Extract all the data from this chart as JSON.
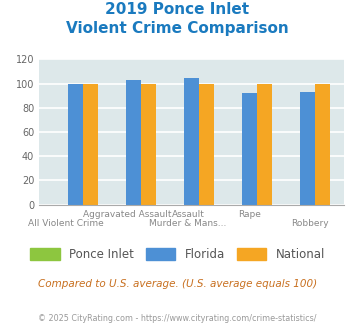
{
  "title_line1": "2019 Ponce Inlet",
  "title_line2": "Violent Crime Comparison",
  "ponce_inlet": [
    0,
    0,
    0,
    0,
    0
  ],
  "florida": [
    100,
    103,
    105,
    92,
    93
  ],
  "national": [
    100,
    100,
    100,
    100,
    100
  ],
  "colors": {
    "ponce_inlet": "#8dc63f",
    "florida": "#4d90d5",
    "national": "#f5a623"
  },
  "ylim": [
    0,
    120
  ],
  "yticks": [
    0,
    20,
    40,
    60,
    80,
    100,
    120
  ],
  "background_color": "#dde8ea",
  "grid_color": "#ffffff",
  "title_color": "#1a7abf",
  "subtitle": "Compared to U.S. average. (U.S. average equals 100)",
  "footer": "© 2025 CityRating.com - https://www.cityrating.com/crime-statistics/",
  "subtitle_color": "#c87020",
  "footer_color": "#999999",
  "top_xlabels": [
    "",
    "Aggravated Assault",
    "Assault",
    "Rape",
    ""
  ],
  "bot_xlabels": [
    "All Violent Crime",
    "",
    "Murder & Mans...",
    "",
    "Robbery"
  ]
}
